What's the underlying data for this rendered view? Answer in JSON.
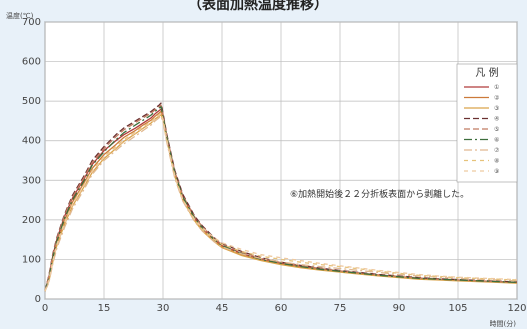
{
  "chart_data": {
    "type": "line",
    "title": "（表面加熱温度推移）",
    "ylabel": "温度(℃)",
    "xlabel": "時間(分)",
    "xlim": [
      0,
      120
    ],
    "ylim": [
      0,
      700
    ],
    "x_ticks": [
      0,
      15,
      30,
      45,
      60,
      75,
      90,
      105,
      120
    ],
    "y_ticks": [
      0,
      100,
      200,
      300,
      400,
      500,
      600,
      700
    ],
    "grid": true,
    "legend": {
      "title": "凡 例",
      "placement": "right"
    },
    "annotation": "⑥加熱開始後２２分折板表面から剥離した。",
    "series": [
      {
        "name": "①",
        "color": "#b03a3a",
        "dash": "",
        "x": [
          0,
          1,
          2,
          3,
          5,
          7,
          10,
          12,
          15,
          18,
          20,
          23,
          25,
          27,
          28,
          29,
          29.5,
          30,
          31,
          33,
          35,
          38,
          40,
          43,
          45,
          50,
          55,
          60,
          65,
          70,
          75,
          80,
          85,
          90,
          95,
          100,
          105,
          110,
          115,
          120
        ],
        "y": [
          20,
          55,
          110,
          150,
          210,
          255,
          305,
          340,
          375,
          400,
          415,
          432,
          445,
          458,
          468,
          476,
          480,
          465,
          410,
          320,
          260,
          205,
          180,
          150,
          135,
          115,
          100,
          90,
          82,
          75,
          70,
          65,
          60,
          56,
          52,
          50,
          48,
          46,
          44,
          42
        ]
      },
      {
        "name": "②",
        "color": "#cc7a3a",
        "dash": "",
        "x": [
          0,
          1,
          2,
          3,
          5,
          7,
          10,
          12,
          15,
          18,
          20,
          23,
          25,
          27,
          28,
          29,
          29.5,
          30,
          31,
          33,
          35,
          38,
          40,
          43,
          45,
          50,
          55,
          60,
          65,
          70,
          75,
          80,
          85,
          90,
          95,
          100,
          105,
          110,
          115,
          120
        ],
        "y": [
          20,
          50,
          100,
          140,
          200,
          245,
          295,
          330,
          365,
          390,
          408,
          426,
          440,
          452,
          462,
          470,
          474,
          460,
          405,
          315,
          255,
          200,
          175,
          147,
          132,
          112,
          98,
          88,
          80,
          74,
          69,
          64,
          59,
          55,
          51,
          49,
          47,
          45,
          43,
          41
        ]
      },
      {
        "name": "③",
        "color": "#d9a34a",
        "dash": "",
        "x": [
          0,
          1,
          2,
          3,
          5,
          7,
          10,
          12,
          15,
          18,
          20,
          23,
          25,
          27,
          28,
          29,
          29.5,
          30,
          31,
          33,
          35,
          38,
          40,
          43,
          45,
          50,
          55,
          60,
          65,
          70,
          75,
          80,
          85,
          90,
          95,
          100,
          105,
          110,
          115,
          120
        ],
        "y": [
          20,
          45,
          95,
          135,
          190,
          235,
          285,
          320,
          355,
          380,
          398,
          418,
          432,
          445,
          455,
          462,
          466,
          452,
          400,
          310,
          250,
          198,
          172,
          145,
          130,
          110,
          97,
          87,
          79,
          73,
          68,
          63,
          58,
          54,
          50,
          48,
          46,
          44,
          42,
          40
        ]
      },
      {
        "name": "④",
        "color": "#6a3030",
        "dash": "6,3",
        "x": [
          0,
          1,
          2,
          3,
          5,
          7,
          10,
          12,
          15,
          18,
          20,
          23,
          25,
          27,
          28,
          29,
          29.5,
          30,
          31,
          33,
          35,
          38,
          40,
          43,
          45,
          50,
          55,
          60,
          65,
          70,
          75,
          80,
          85,
          90,
          95,
          100,
          105,
          110,
          115,
          120
        ],
        "y": [
          20,
          60,
          115,
          155,
          215,
          262,
          312,
          350,
          385,
          415,
          432,
          450,
          462,
          474,
          482,
          490,
          495,
          470,
          415,
          325,
          265,
          210,
          185,
          155,
          140,
          120,
          104,
          93,
          85,
          78,
          72,
          67,
          62,
          58,
          54,
          51,
          49,
          47,
          45,
          43
        ]
      },
      {
        "name": "⑤",
        "color": "#c07a60",
        "dash": "6,3",
        "x": [
          0,
          1,
          2,
          3,
          5,
          7,
          10,
          12,
          15,
          18,
          20,
          23,
          25,
          27,
          28,
          29,
          29.5,
          30,
          31,
          33,
          35,
          38,
          40,
          43,
          45,
          50,
          55,
          60,
          65,
          70,
          75,
          80,
          85,
          90,
          95,
          100,
          105,
          110,
          115,
          120
        ],
        "y": [
          20,
          58,
          112,
          152,
          212,
          258,
          308,
          345,
          380,
          410,
          427,
          446,
          458,
          470,
          478,
          486,
          490,
          468,
          412,
          322,
          262,
          208,
          183,
          153,
          138,
          118,
          102,
          92,
          84,
          77,
          71,
          66,
          61,
          57,
          53,
          50,
          48,
          46,
          44,
          42
        ]
      },
      {
        "name": "⑥",
        "color": "#3c6e3c",
        "dash": "8,3,2,3",
        "x": [
          0,
          1,
          2,
          3,
          5,
          7,
          10,
          12,
          15,
          18,
          20,
          23,
          25,
          27,
          28,
          29,
          29.5,
          30,
          31,
          33,
          35,
          38,
          40,
          43,
          45,
          50,
          55,
          60,
          65,
          70,
          75,
          80,
          85,
          90,
          95,
          100,
          105,
          110,
          115,
          120
        ],
        "y": [
          20,
          52,
          105,
          145,
          205,
          250,
          300,
          338,
          372,
          402,
          420,
          440,
          452,
          465,
          474,
          482,
          486,
          462,
          408,
          318,
          258,
          205,
          180,
          150,
          135,
          115,
          100,
          90,
          82,
          75,
          70,
          65,
          60,
          56,
          52,
          50,
          48,
          46,
          44,
          42
        ]
      },
      {
        "name": "⑦",
        "color": "#e0b890",
        "dash": "8,3,2,3",
        "x": [
          0,
          1,
          2,
          3,
          5,
          7,
          10,
          12,
          15,
          18,
          20,
          23,
          25,
          27,
          28,
          29,
          29.5,
          30,
          31,
          33,
          35,
          38,
          40,
          43,
          45,
          50,
          55,
          60,
          65,
          70,
          75,
          80,
          85,
          90,
          95,
          100,
          105,
          110,
          115,
          120
        ],
        "y": [
          20,
          42,
          90,
          128,
          182,
          228,
          278,
          315,
          350,
          375,
          392,
          412,
          426,
          440,
          450,
          458,
          462,
          448,
          395,
          305,
          248,
          196,
          172,
          145,
          132,
          114,
          102,
          94,
          87,
          82,
          77,
          72,
          67,
          62,
          58,
          55,
          52,
          50,
          48,
          46
        ]
      },
      {
        "name": "⑧",
        "color": "#e6c27a",
        "dash": "4,4",
        "x": [
          0,
          1,
          2,
          3,
          5,
          7,
          10,
          12,
          15,
          18,
          20,
          23,
          25,
          27,
          28,
          29,
          29.5,
          30,
          31,
          33,
          35,
          38,
          40,
          43,
          45,
          50,
          55,
          60,
          65,
          70,
          75,
          80,
          85,
          90,
          95,
          100,
          105,
          110,
          115,
          120
        ],
        "y": [
          20,
          48,
          98,
          138,
          195,
          240,
          290,
          325,
          360,
          385,
          402,
          422,
          436,
          448,
          458,
          466,
          470,
          456,
          402,
          312,
          252,
          200,
          176,
          150,
          138,
          120,
          108,
          100,
          93,
          87,
          82,
          76,
          70,
          65,
          60,
          57,
          54,
          52,
          50,
          48
        ]
      },
      {
        "name": "⑨",
        "color": "#eec9a0",
        "dash": "4,4",
        "x": [
          0,
          1,
          2,
          3,
          5,
          7,
          10,
          12,
          15,
          18,
          20,
          23,
          25,
          27,
          28,
          29,
          29.5,
          30,
          31,
          33,
          35,
          38,
          40,
          43,
          45,
          50,
          55,
          60,
          65,
          70,
          75,
          80,
          85,
          90,
          95,
          100,
          105,
          110,
          115,
          120
        ],
        "y": [
          20,
          46,
          96,
          136,
          192,
          238,
          288,
          322,
          358,
          382,
          400,
          420,
          434,
          446,
          456,
          464,
          468,
          454,
          400,
          310,
          252,
          202,
          180,
          155,
          142,
          125,
          112,
          104,
          97,
          90,
          84,
          78,
          72,
          67,
          62,
          58,
          55,
          53,
          51,
          49
        ]
      }
    ]
  }
}
